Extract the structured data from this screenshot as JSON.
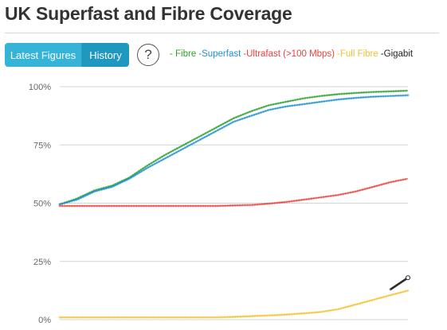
{
  "header": {
    "title": "UK Superfast and Fibre Coverage"
  },
  "toolbar": {
    "latest_label": "Latest Figures",
    "history_label": "History",
    "help_label": "?",
    "help_icon": "question-circle-icon"
  },
  "legend": [
    {
      "label": "- Fibre",
      "color": "#2ca02c"
    },
    {
      "label": "-Superfast",
      "color": "#1f8fd6"
    },
    {
      "label": "-Ultrafast (>100 Mbps)",
      "color": "#e8413c"
    },
    {
      "label": "-Full Fibre",
      "color": "#f2c12e"
    },
    {
      "label": "-Gigabit",
      "color": "#222222"
    }
  ],
  "chart_data": {
    "type": "line",
    "title": "UK Superfast and Fibre Coverage",
    "xlabel": "",
    "ylabel": "",
    "ylim": [
      0,
      100
    ],
    "yticks": [
      "0%",
      "25%",
      "50%",
      "75%",
      "100%"
    ],
    "grid": true,
    "legend_position": "top",
    "x": [
      0,
      5,
      10,
      15,
      20,
      25,
      30,
      35,
      40,
      45,
      50,
      55,
      60,
      65,
      70,
      75,
      80,
      85,
      90,
      95,
      100
    ],
    "series": [
      {
        "name": "Fibre",
        "color": "#2ca02c",
        "values": [
          49.5,
          52,
          55.5,
          57.5,
          61,
          66,
          70.5,
          74.5,
          78.5,
          82.5,
          86.5,
          89.5,
          92,
          93.5,
          95,
          96,
          96.8,
          97.3,
          97.7,
          98,
          98.3
        ]
      },
      {
        "name": "Superfast",
        "color": "#1f8fd6",
        "values": [
          49.5,
          51.5,
          55,
          57,
          60.5,
          65,
          69,
          73,
          77,
          81,
          85,
          87.5,
          90,
          91.5,
          92.5,
          93.5,
          94.5,
          95.2,
          95.7,
          96,
          96.3
        ]
      },
      {
        "name": "Ultrafast (>100 Mbps)",
        "color": "#e8413c",
        "values": [
          48.8,
          48.8,
          48.8,
          48.8,
          48.8,
          48.8,
          48.8,
          48.8,
          48.8,
          48.8,
          49,
          49.2,
          49.8,
          50.5,
          51.5,
          52.5,
          53.5,
          55,
          57,
          59,
          60.5
        ]
      },
      {
        "name": "Full Fibre",
        "color": "#f2c12e",
        "values": [
          1,
          1,
          1,
          1,
          1,
          1,
          1,
          1,
          1,
          1,
          1.2,
          1.5,
          1.8,
          2.2,
          2.7,
          3.3,
          4.5,
          6.5,
          8.5,
          10.5,
          12.5
        ]
      },
      {
        "name": "Gigabit",
        "color": "#222222",
        "values": [
          null,
          null,
          null,
          null,
          null,
          null,
          null,
          null,
          null,
          null,
          null,
          null,
          null,
          null,
          null,
          null,
          null,
          null,
          null,
          13,
          18
        ]
      }
    ]
  }
}
